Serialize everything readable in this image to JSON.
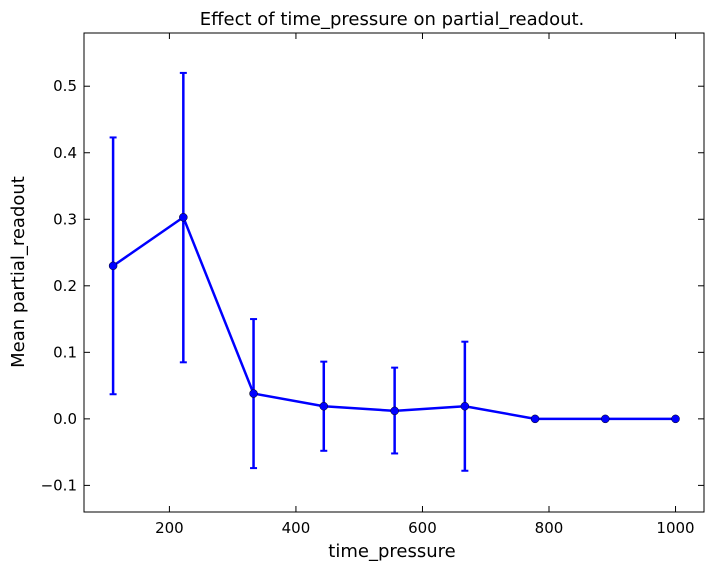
{
  "chart_data": {
    "type": "line",
    "title": "Effect of time_pressure on partial_readout.",
    "xlabel": "time_pressure",
    "ylabel": "Mean partial_readout",
    "xlim": [
      65,
      1045
    ],
    "ylim": [
      -0.14,
      0.58
    ],
    "x_ticks": [
      200,
      400,
      600,
      800,
      1000
    ],
    "x_tick_labels": [
      "200",
      "400",
      "600",
      "800",
      "1000"
    ],
    "y_ticks": [
      -0.1,
      0.0,
      0.1,
      0.2,
      0.3,
      0.4,
      0.5
    ],
    "y_tick_labels": [
      "−0.1",
      "0.0",
      "0.1",
      "0.2",
      "0.3",
      "0.4",
      "0.5"
    ],
    "grid": false,
    "series": [
      {
        "color": "#0000ff",
        "points": [
          {
            "x": 111,
            "y": 0.23,
            "err_low": 0.037,
            "err_high": 0.423
          },
          {
            "x": 222,
            "y": 0.303,
            "err_low": 0.085,
            "err_high": 0.52
          },
          {
            "x": 333,
            "y": 0.038,
            "err_low": -0.074,
            "err_high": 0.15
          },
          {
            "x": 444,
            "y": 0.019,
            "err_low": -0.048,
            "err_high": 0.086
          },
          {
            "x": 556,
            "y": 0.012,
            "err_low": -0.052,
            "err_high": 0.077
          },
          {
            "x": 667,
            "y": 0.019,
            "err_low": -0.078,
            "err_high": 0.116
          },
          {
            "x": 778,
            "y": 0.0,
            "err_low": 0.0,
            "err_high": 0.0
          },
          {
            "x": 889,
            "y": 0.0,
            "err_low": 0.0,
            "err_high": 0.0
          },
          {
            "x": 1000,
            "y": 0.0,
            "err_low": 0.0,
            "err_high": 0.0
          }
        ]
      }
    ]
  }
}
